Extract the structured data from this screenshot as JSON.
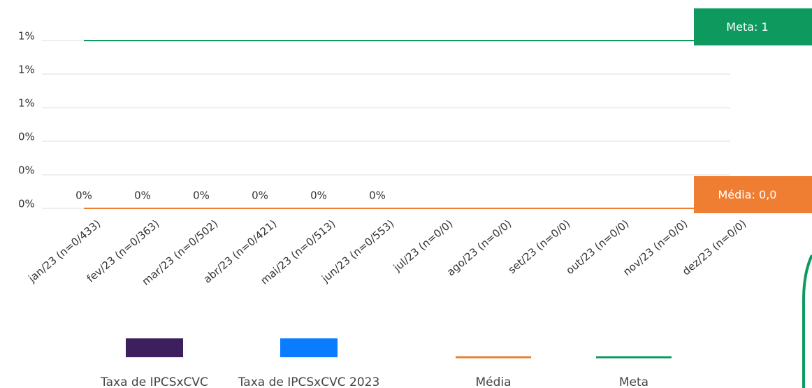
{
  "chart_data": {
    "type": "bar",
    "categories": [
      "jan/23 (n=0/433)",
      "fev/23 (n=0/363)",
      "mar/23 (n=0/502)",
      "abr/23 (n=0/421)",
      "mai/23 (n=0/513)",
      "jun/23 (n=0/553)",
      "jul/23 (n=0/0)",
      "ago/23 (n=0/0)",
      "set/23 (n=0/0)",
      "out/23 (n=0/0)",
      "nov/23 (n=0/0)",
      "dez/23 (n=0/0)"
    ],
    "series": [
      {
        "name": "Taxa de IPCSxCVC",
        "type": "bar",
        "color": "#3d1f5e",
        "values": [
          0,
          0,
          0,
          0,
          0,
          0,
          null,
          null,
          null,
          null,
          null,
          null
        ]
      },
      {
        "name": "Taxa de IPCSxCVC 2023",
        "type": "bar",
        "color": "#0a7cff",
        "values": [
          0,
          0,
          0,
          0,
          0,
          0,
          null,
          null,
          null,
          null,
          null,
          null
        ],
        "value_labels": [
          "0%",
          "0%",
          "0%",
          "0%",
          "0%",
          "0%",
          null,
          null,
          null,
          null,
          null,
          null
        ]
      },
      {
        "name": "Média",
        "type": "line",
        "color": "#ef7d32",
        "values": [
          0,
          0,
          0,
          0,
          0,
          0,
          0,
          0,
          0,
          0,
          0,
          0
        ]
      },
      {
        "name": "Meta",
        "type": "line",
        "color": "#0e9a5e",
        "values": [
          1,
          1,
          1,
          1,
          1,
          1,
          1,
          1,
          1,
          1,
          1,
          1
        ]
      }
    ],
    "annotations": [
      {
        "text": "Meta: 1",
        "series": 3
      },
      {
        "text": "Média: 0,0",
        "series": 2
      }
    ],
    "ylim": [
      0,
      1
    ],
    "yticks": [
      {
        "value": 0,
        "label": "0%"
      },
      {
        "value": 0.2,
        "label": "0%"
      },
      {
        "value": 0.4,
        "label": "0%"
      },
      {
        "value": 0.6,
        "label": "1%"
      },
      {
        "value": 0.8,
        "label": "1%"
      },
      {
        "value": 1,
        "label": "1%"
      }
    ],
    "grid": true,
    "legend": "bottom"
  }
}
